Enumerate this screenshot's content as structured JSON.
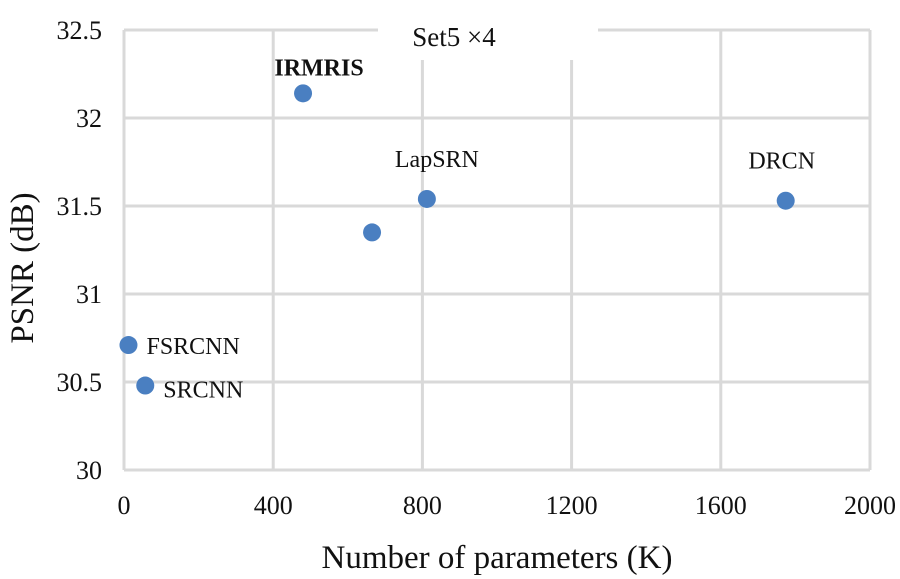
{
  "chart_data": {
    "type": "scatter",
    "title": "Set5 ×4",
    "xlabel": "Number of parameters (K)",
    "ylabel": "PSNR (dB)",
    "xlim": [
      0,
      2000
    ],
    "ylim": [
      30,
      32.5
    ],
    "xticks": [
      "0",
      "400",
      "800",
      "1200",
      "1600",
      "2000"
    ],
    "yticks": [
      "30",
      "30.5",
      "31",
      "31.5",
      "32",
      "32.5"
    ],
    "grid": true,
    "marker_color": "#4a7fc1",
    "highlight_color": "#e8312a",
    "points": [
      {
        "label": "IRMRIS",
        "x": 480,
        "y": 32.14,
        "highlight": true
      },
      {
        "label": "",
        "x": 665,
        "y": 31.35
      },
      {
        "label": "LapSRN",
        "x": 812,
        "y": 31.54
      },
      {
        "label": "DRCN",
        "x": 1774,
        "y": 31.53
      },
      {
        "label": "FSRCNN",
        "x": 12,
        "y": 30.71
      },
      {
        "label": "SRCNN",
        "x": 57,
        "y": 30.48
      }
    ]
  }
}
